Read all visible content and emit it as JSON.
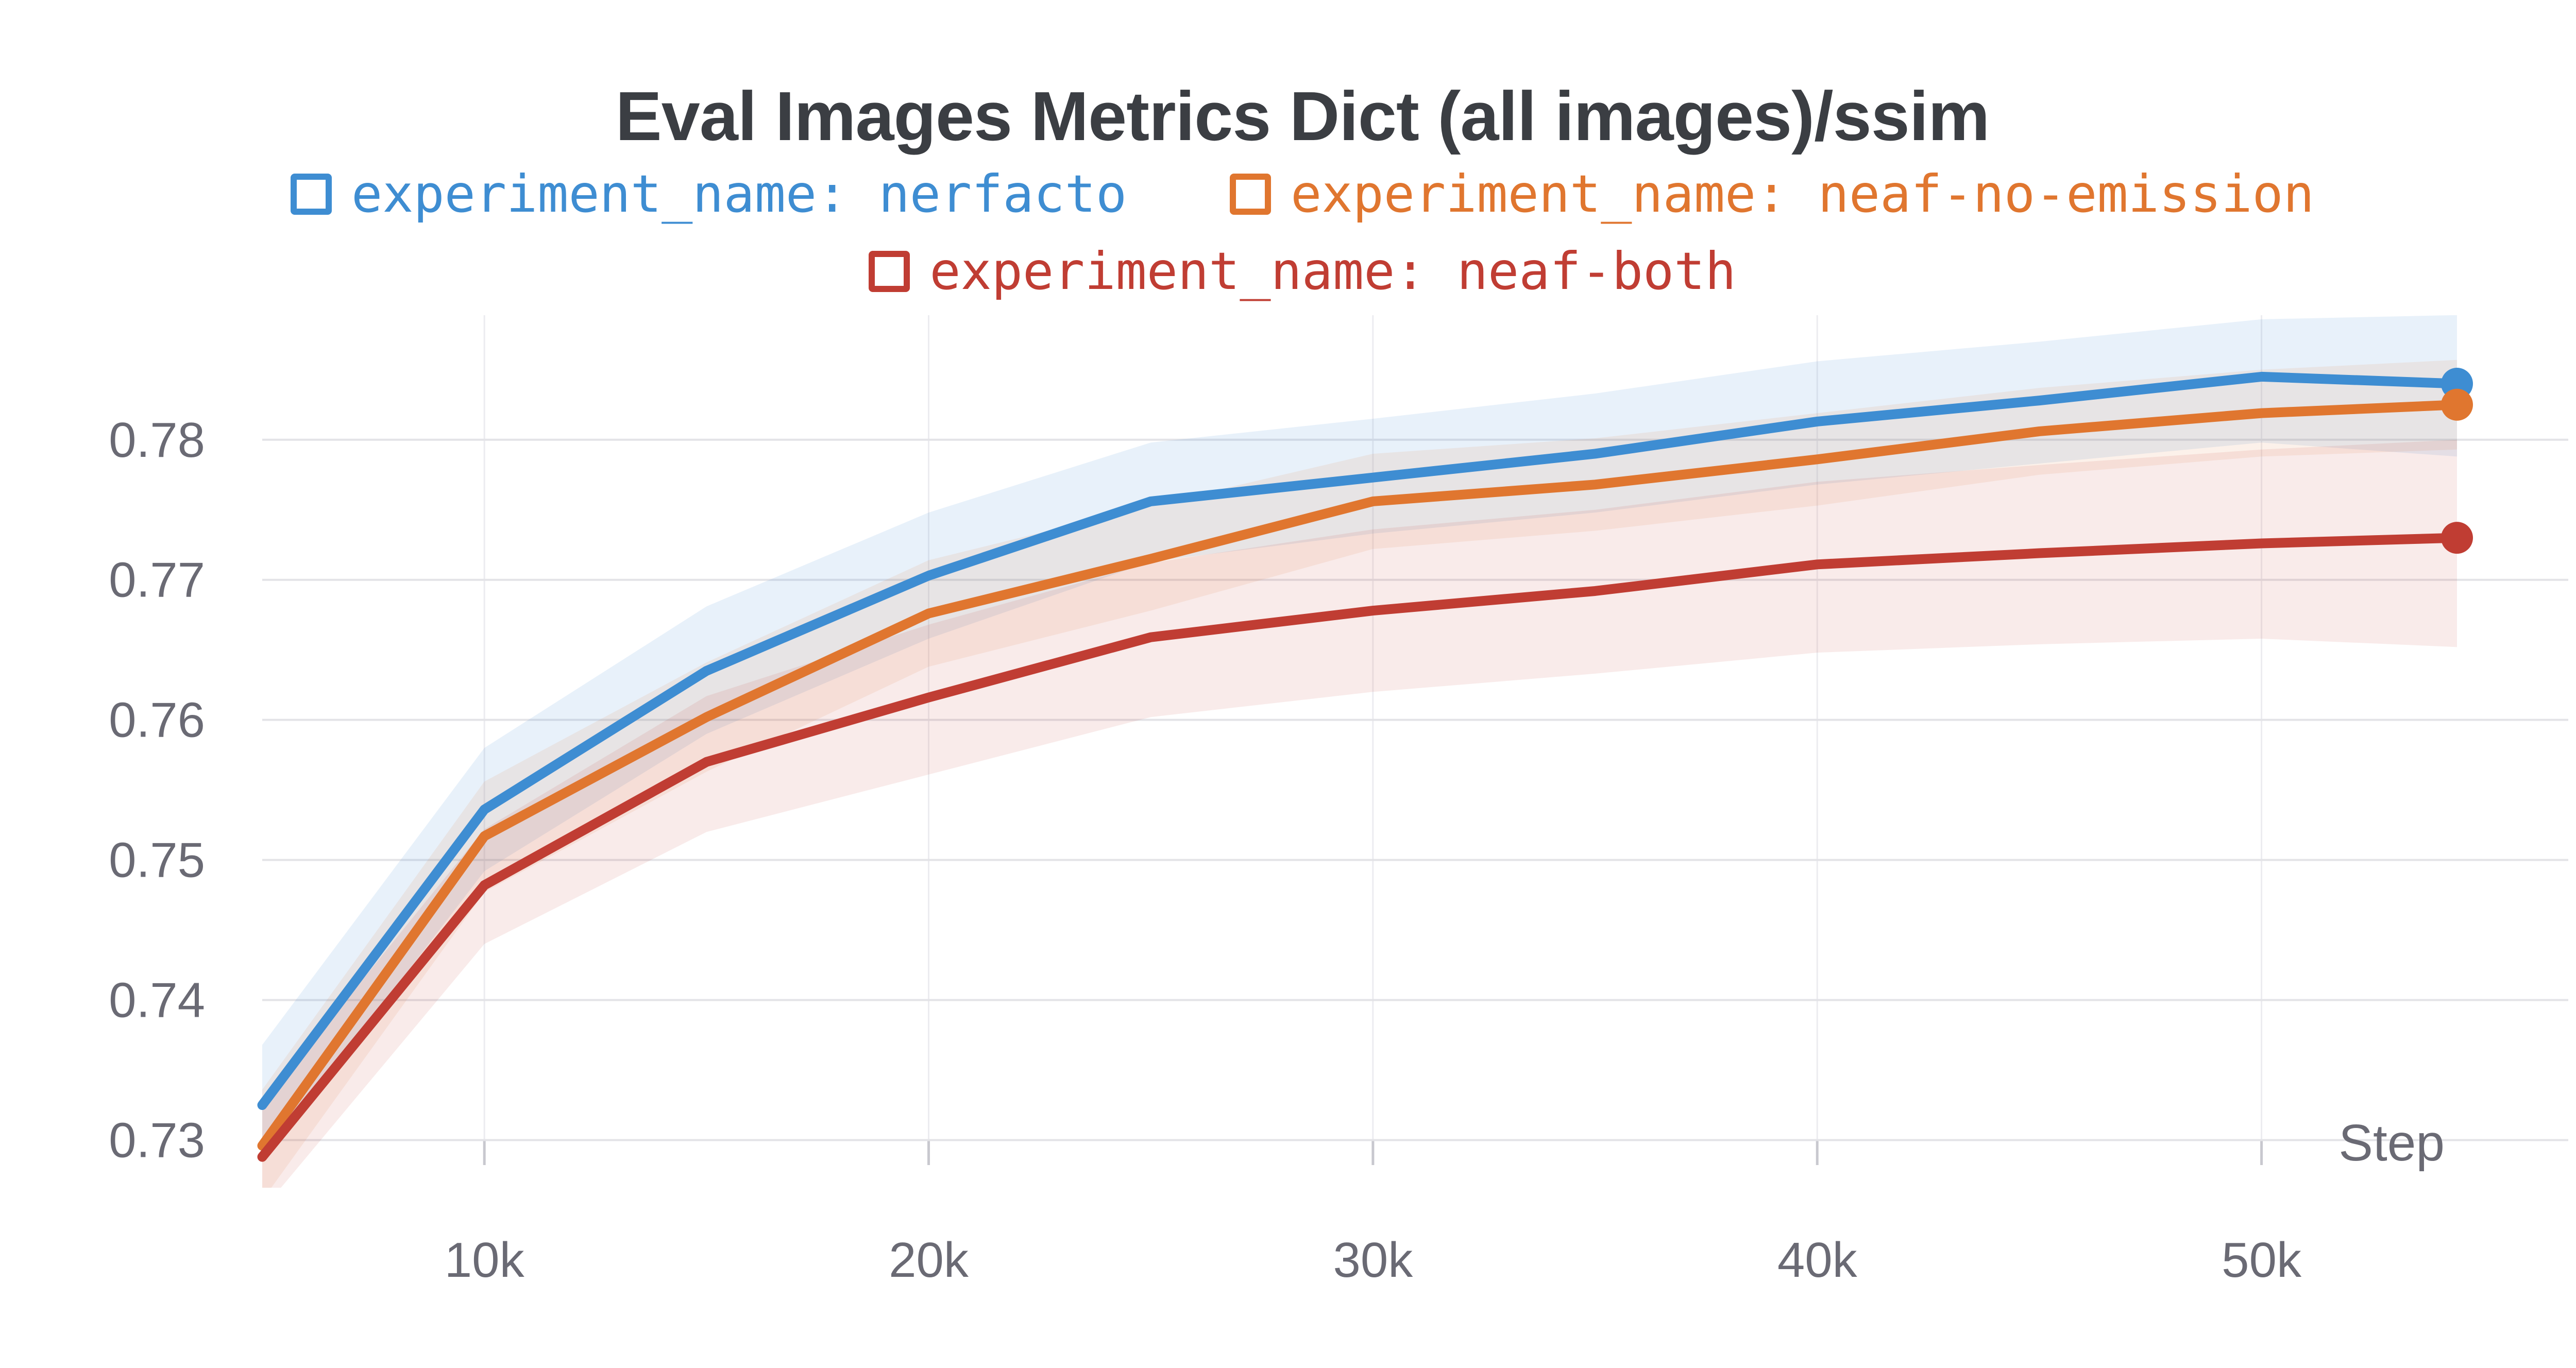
{
  "chart_data": {
    "type": "line",
    "title": "Eval Images Metrics Dict (all images)/ssim",
    "xlabel": "Step",
    "legend_position": "top-centered-two-rows",
    "grid": "horizontal-light-and-faint-vertical",
    "x_range": [
      5000,
      54400
    ],
    "y_range": [
      0.7266,
      0.78889
    ],
    "x_ticks": [
      {
        "value": 10000,
        "label": "10k"
      },
      {
        "value": 20000,
        "label": "20k"
      },
      {
        "value": 30000,
        "label": "30k"
      },
      {
        "value": 40000,
        "label": "40k"
      },
      {
        "value": 50000,
        "label": "50k"
      }
    ],
    "y_ticks": [
      {
        "value": 0.73,
        "label": "0.73"
      },
      {
        "value": 0.74,
        "label": "0.74"
      },
      {
        "value": 0.75,
        "label": "0.75"
      },
      {
        "value": 0.76,
        "label": "0.76"
      },
      {
        "value": 0.77,
        "label": "0.77"
      },
      {
        "value": 0.78,
        "label": "0.78"
      }
    ],
    "x": [
      5000,
      10000,
      15000,
      20000,
      25000,
      30000,
      35000,
      40000,
      45000,
      50000,
      54400
    ],
    "series": [
      {
        "name": "experiment_name: nerfacto",
        "slug": "nerfacto",
        "color": "#3e8dd2",
        "band_opacity": 0.12,
        "values": [
          0.7325,
          0.7536,
          0.7635,
          0.7703,
          0.7756,
          0.7773,
          0.779,
          0.7813,
          0.7828,
          0.7845,
          0.784
        ],
        "band_low": [
          0.7285,
          0.7492,
          0.759,
          0.7658,
          0.7713,
          0.7733,
          0.7748,
          0.7768,
          0.7783,
          0.7798,
          0.7788
        ],
        "band_high": [
          0.7368,
          0.758,
          0.7681,
          0.7748,
          0.7798,
          0.7815,
          0.7833,
          0.7856,
          0.787,
          0.7886,
          0.7889
        ]
      },
      {
        "name": "experiment_name: neaf-no-emission",
        "slug": "neaf-no-emission",
        "color": "#e0762f",
        "band_opacity": 0.1,
        "values": [
          0.7296,
          0.7517,
          0.7602,
          0.7676,
          0.7715,
          0.7756,
          0.7768,
          0.7786,
          0.7806,
          0.7819,
          0.7825
        ],
        "band_low": [
          0.7257,
          0.7477,
          0.7563,
          0.7638,
          0.7678,
          0.7722,
          0.7735,
          0.7753,
          0.7775,
          0.7788,
          0.7793
        ],
        "band_high": [
          0.7336,
          0.7556,
          0.7641,
          0.7714,
          0.7753,
          0.779,
          0.7801,
          0.7819,
          0.7837,
          0.785,
          0.7857
        ]
      },
      {
        "name": "experiment_name: neaf-both",
        "slug": "neaf-both",
        "color": "#c03d33",
        "band_opacity": 0.1,
        "values": [
          0.7288,
          0.7482,
          0.757,
          0.7616,
          0.7659,
          0.7678,
          0.7692,
          0.7711,
          0.7719,
          0.7726,
          0.773
        ],
        "band_low": [
          0.725,
          0.744,
          0.752,
          0.7561,
          0.7602,
          0.762,
          0.7633,
          0.7648,
          0.7654,
          0.7658,
          0.7652
        ],
        "band_high": [
          0.7326,
          0.7522,
          0.7617,
          0.7668,
          0.7712,
          0.7736,
          0.775,
          0.777,
          0.7782,
          0.7793,
          0.78
        ]
      }
    ],
    "colors": {
      "title": "#3b3e43",
      "axis_text": "#6a6a74",
      "gridline": "#e3e3e7",
      "vertical_gridline": "#ececf0",
      "tick_mark": "#c8c8cf"
    }
  }
}
